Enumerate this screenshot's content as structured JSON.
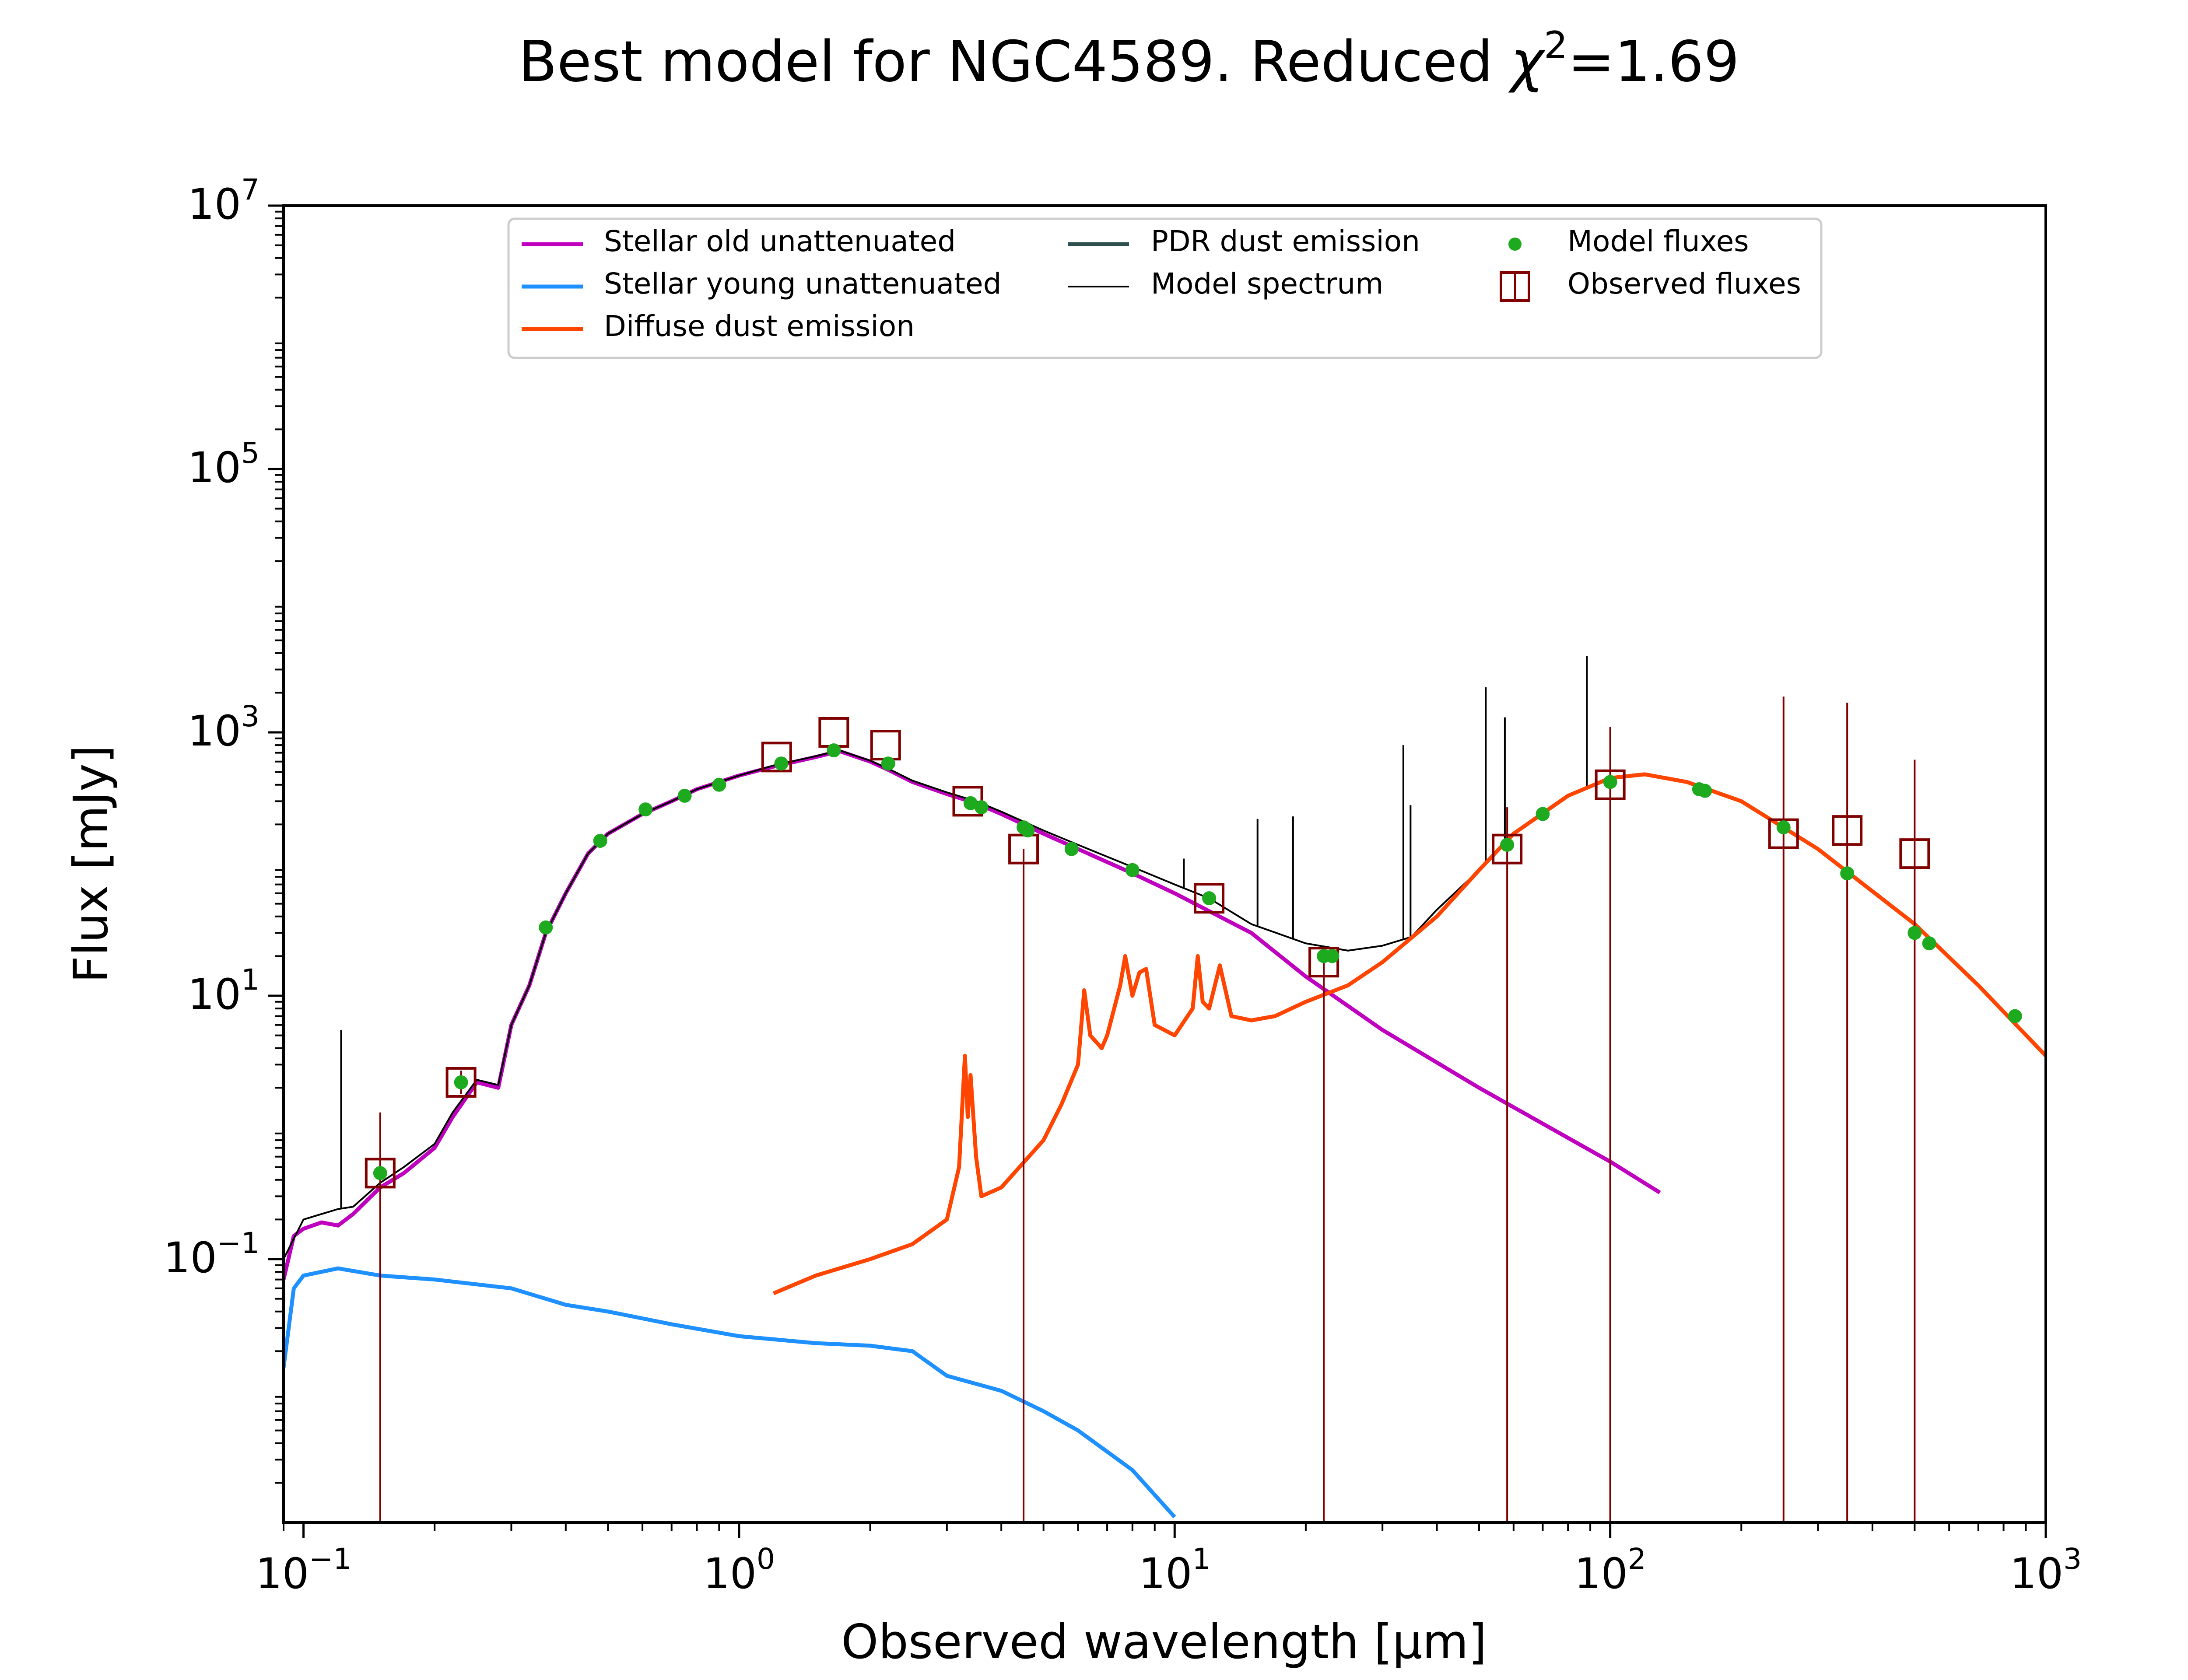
{
  "chart_data": {
    "type": "line",
    "title": "Best model for NGC4589. Reduced χ²=1.69",
    "title_main": "Best model for NGC4589. Reduced ",
    "title_chi": "χ",
    "title_sup": "2",
    "title_tail": "=1.69",
    "xlabel": "Observed wavelength [μm]",
    "ylabel": "Flux [mJy]",
    "x_scale": "log",
    "y_scale": "log",
    "xlim": [
      0.09,
      1000
    ],
    "ylim": [
      0.001,
      10000000
    ],
    "x_ticks": [
      {
        "value": 0.1,
        "base": "10",
        "exp": "−1"
      },
      {
        "value": 1,
        "base": "10",
        "exp": "0"
      },
      {
        "value": 10,
        "base": "10",
        "exp": "1"
      },
      {
        "value": 100,
        "base": "10",
        "exp": "2"
      },
      {
        "value": 1000,
        "base": "10",
        "exp": "3"
      }
    ],
    "y_ticks": [
      {
        "value": 0.1,
        "base": "10",
        "exp": "−1"
      },
      {
        "value": 10,
        "base": "10",
        "exp": "1"
      },
      {
        "value": 1000,
        "base": "10",
        "exp": "3"
      },
      {
        "value": 100000,
        "base": "10",
        "exp": "5"
      },
      {
        "value": 10000000,
        "base": "10",
        "exp": "7"
      }
    ],
    "grid": false,
    "legend_position": "top-center",
    "series": [
      {
        "name": "Stellar old unattenuated",
        "kind": "line",
        "color": "#bf00bf",
        "points": [
          [
            0.09,
            0.07
          ],
          [
            0.095,
            0.15
          ],
          [
            0.1,
            0.17
          ],
          [
            0.11,
            0.19
          ],
          [
            0.12,
            0.18
          ],
          [
            0.13,
            0.22
          ],
          [
            0.15,
            0.35
          ],
          [
            0.17,
            0.45
          ],
          [
            0.2,
            0.7
          ],
          [
            0.22,
            1.2
          ],
          [
            0.25,
            2.2
          ],
          [
            0.28,
            2.0
          ],
          [
            0.3,
            6
          ],
          [
            0.33,
            12
          ],
          [
            0.36,
            30
          ],
          [
            0.4,
            60
          ],
          [
            0.45,
            120
          ],
          [
            0.5,
            170
          ],
          [
            0.6,
            240
          ],
          [
            0.7,
            300
          ],
          [
            0.8,
            370
          ],
          [
            1.0,
            470
          ],
          [
            1.2,
            550
          ],
          [
            1.5,
            650
          ],
          [
            1.7,
            720
          ],
          [
            2.0,
            600
          ],
          [
            2.2,
            520
          ],
          [
            2.5,
            420
          ],
          [
            3.0,
            340
          ],
          [
            3.5,
            290
          ],
          [
            4.0,
            240
          ],
          [
            5.0,
            170
          ],
          [
            6.0,
            130
          ],
          [
            8.0,
            85
          ],
          [
            10.0,
            60
          ],
          [
            15.0,
            30
          ],
          [
            20.0,
            14
          ],
          [
            30.0,
            5.5
          ],
          [
            50.0,
            2.0
          ],
          [
            100.0,
            0.55
          ],
          [
            130.0,
            0.32
          ]
        ]
      },
      {
        "name": "Stellar young unattenuated",
        "kind": "line",
        "color": "#1e90ff",
        "points": [
          [
            0.09,
            0.015
          ],
          [
            0.095,
            0.06
          ],
          [
            0.1,
            0.075
          ],
          [
            0.12,
            0.085
          ],
          [
            0.15,
            0.075
          ],
          [
            0.2,
            0.07
          ],
          [
            0.3,
            0.06
          ],
          [
            0.4,
            0.045
          ],
          [
            0.5,
            0.04
          ],
          [
            0.7,
            0.032
          ],
          [
            1.0,
            0.026
          ],
          [
            1.5,
            0.023
          ],
          [
            2.0,
            0.022
          ],
          [
            2.5,
            0.02
          ],
          [
            3.0,
            0.013
          ],
          [
            4.0,
            0.01
          ],
          [
            5.0,
            0.007
          ],
          [
            6.0,
            0.005
          ],
          [
            8.0,
            0.0025
          ],
          [
            10.0,
            0.0011
          ]
        ]
      },
      {
        "name": "Diffuse dust emission",
        "kind": "line",
        "color": "#ff4500",
        "points": [
          [
            1.2,
            0.055
          ],
          [
            1.5,
            0.075
          ],
          [
            2.0,
            0.1
          ],
          [
            2.5,
            0.13
          ],
          [
            3.0,
            0.2
          ],
          [
            3.2,
            0.5
          ],
          [
            3.3,
            3.5
          ],
          [
            3.35,
            1.2
          ],
          [
            3.4,
            2.5
          ],
          [
            3.5,
            0.6
          ],
          [
            3.6,
            0.3
          ],
          [
            4.0,
            0.35
          ],
          [
            5.0,
            0.8
          ],
          [
            5.5,
            1.5
          ],
          [
            6.0,
            3.0
          ],
          [
            6.2,
            11
          ],
          [
            6.4,
            5
          ],
          [
            6.8,
            4
          ],
          [
            7.0,
            5
          ],
          [
            7.5,
            12
          ],
          [
            7.7,
            20
          ],
          [
            8.0,
            10
          ],
          [
            8.3,
            15
          ],
          [
            8.6,
            16
          ],
          [
            9.0,
            6
          ],
          [
            10.0,
            5
          ],
          [
            11.0,
            8
          ],
          [
            11.3,
            20
          ],
          [
            11.6,
            9
          ],
          [
            12.0,
            8
          ],
          [
            12.7,
            17
          ],
          [
            13.5,
            7
          ],
          [
            15.0,
            6.5
          ],
          [
            17.0,
            7
          ],
          [
            20.0,
            9
          ],
          [
            25.0,
            12
          ],
          [
            30.0,
            18
          ],
          [
            40.0,
            40
          ],
          [
            50.0,
            90
          ],
          [
            60.0,
            170
          ],
          [
            80.0,
            330
          ],
          [
            100.0,
            450
          ],
          [
            120.0,
            480
          ],
          [
            150.0,
            420
          ],
          [
            200.0,
            300
          ],
          [
            300.0,
            130
          ],
          [
            500.0,
            35
          ],
          [
            700.0,
            12
          ],
          [
            1000.0,
            3.5
          ]
        ]
      },
      {
        "name": "PDR dust emission",
        "kind": "line",
        "color": "#2f4f4f",
        "points": []
      },
      {
        "name": "Model spectrum",
        "kind": "line",
        "color": "#000000",
        "points": [
          [
            0.09,
            0.1
          ],
          [
            0.1,
            0.2
          ],
          [
            0.11,
            0.22
          ],
          [
            0.12,
            0.24
          ],
          [
            0.13,
            0.25
          ],
          [
            0.15,
            0.38
          ],
          [
            0.17,
            0.5
          ],
          [
            0.2,
            0.75
          ],
          [
            0.22,
            1.3
          ],
          [
            0.25,
            2.3
          ],
          [
            0.28,
            2.1
          ],
          [
            0.3,
            6
          ],
          [
            0.33,
            12
          ],
          [
            0.36,
            30
          ],
          [
            0.4,
            60
          ],
          [
            0.45,
            120
          ],
          [
            0.5,
            170
          ],
          [
            0.6,
            240
          ],
          [
            0.7,
            300
          ],
          [
            0.8,
            370
          ],
          [
            1.0,
            470
          ],
          [
            1.2,
            560
          ],
          [
            1.5,
            660
          ],
          [
            1.7,
            730
          ],
          [
            2.0,
            610
          ],
          [
            2.2,
            530
          ],
          [
            2.5,
            430
          ],
          [
            3.0,
            350
          ],
          [
            3.5,
            300
          ],
          [
            4.0,
            250
          ],
          [
            5.0,
            180
          ],
          [
            6.0,
            140
          ],
          [
            8.0,
            95
          ],
          [
            10.0,
            70
          ],
          [
            12.0,
            55
          ],
          [
            15.0,
            35
          ],
          [
            20.0,
            25
          ],
          [
            25.0,
            22
          ],
          [
            30.0,
            24
          ],
          [
            35.0,
            28
          ],
          [
            40.0,
            45
          ],
          [
            50.0,
            90
          ],
          [
            60.0,
            170
          ],
          [
            80.0,
            330
          ],
          [
            100.0,
            450
          ],
          [
            120.0,
            480
          ],
          [
            150.0,
            420
          ],
          [
            200.0,
            300
          ],
          [
            300.0,
            130
          ],
          [
            500.0,
            35
          ],
          [
            700.0,
            12
          ],
          [
            1000.0,
            3.5
          ]
        ],
        "emission_lines": [
          [
            0.122,
            5.5
          ],
          [
            10.5,
            110
          ],
          [
            15.5,
            220
          ],
          [
            18.7,
            230
          ],
          [
            33.5,
            800
          ],
          [
            34.8,
            280
          ],
          [
            51.8,
            2200
          ],
          [
            57.3,
            1300
          ],
          [
            88.4,
            3800
          ],
          [
            157.7,
            400
          ]
        ]
      },
      {
        "name": "Model fluxes",
        "kind": "scatter",
        "color": "#1eaa1e",
        "points": [
          [
            0.15,
            0.45
          ],
          [
            0.23,
            2.2
          ],
          [
            0.36,
            33
          ],
          [
            0.48,
            150
          ],
          [
            0.61,
            260
          ],
          [
            0.75,
            330
          ],
          [
            0.9,
            400
          ],
          [
            1.25,
            580
          ],
          [
            1.65,
            730
          ],
          [
            2.2,
            580
          ],
          [
            3.4,
            290
          ],
          [
            3.6,
            270
          ],
          [
            4.5,
            190
          ],
          [
            4.6,
            180
          ],
          [
            5.8,
            130
          ],
          [
            8.0,
            90
          ],
          [
            12.0,
            55
          ],
          [
            22.0,
            20
          ],
          [
            23.0,
            20
          ],
          [
            58.0,
            140
          ],
          [
            70.0,
            240
          ],
          [
            100.0,
            420
          ],
          [
            160.0,
            370
          ],
          [
            165.0,
            360
          ],
          [
            250.0,
            190
          ],
          [
            350.0,
            85
          ],
          [
            500.0,
            30
          ],
          [
            540.0,
            25
          ],
          [
            850.0,
            7
          ]
        ]
      },
      {
        "name": "Observed fluxes",
        "kind": "errorbar",
        "color": "#800000",
        "points": [
          [
            0.15,
            0.45,
            0.6,
            0.85
          ],
          [
            0.23,
            2.2,
            0.4,
            0.5
          ],
          [
            1.22,
            650,
            0,
            0
          ],
          [
            1.65,
            1000,
            0,
            0
          ],
          [
            2.17,
            800,
            0,
            0
          ],
          [
            3.35,
            300,
            0,
            0
          ],
          [
            4.5,
            130,
            180,
            0
          ],
          [
            12.0,
            55,
            0,
            0
          ],
          [
            22.0,
            18,
            18,
            0
          ],
          [
            58.0,
            130,
            130,
            140
          ],
          [
            100.0,
            400,
            400,
            700
          ],
          [
            250.0,
            170,
            170,
            1700
          ],
          [
            350.0,
            180,
            180,
            1500
          ],
          [
            500.0,
            120,
            120,
            500
          ]
        ]
      }
    ]
  }
}
